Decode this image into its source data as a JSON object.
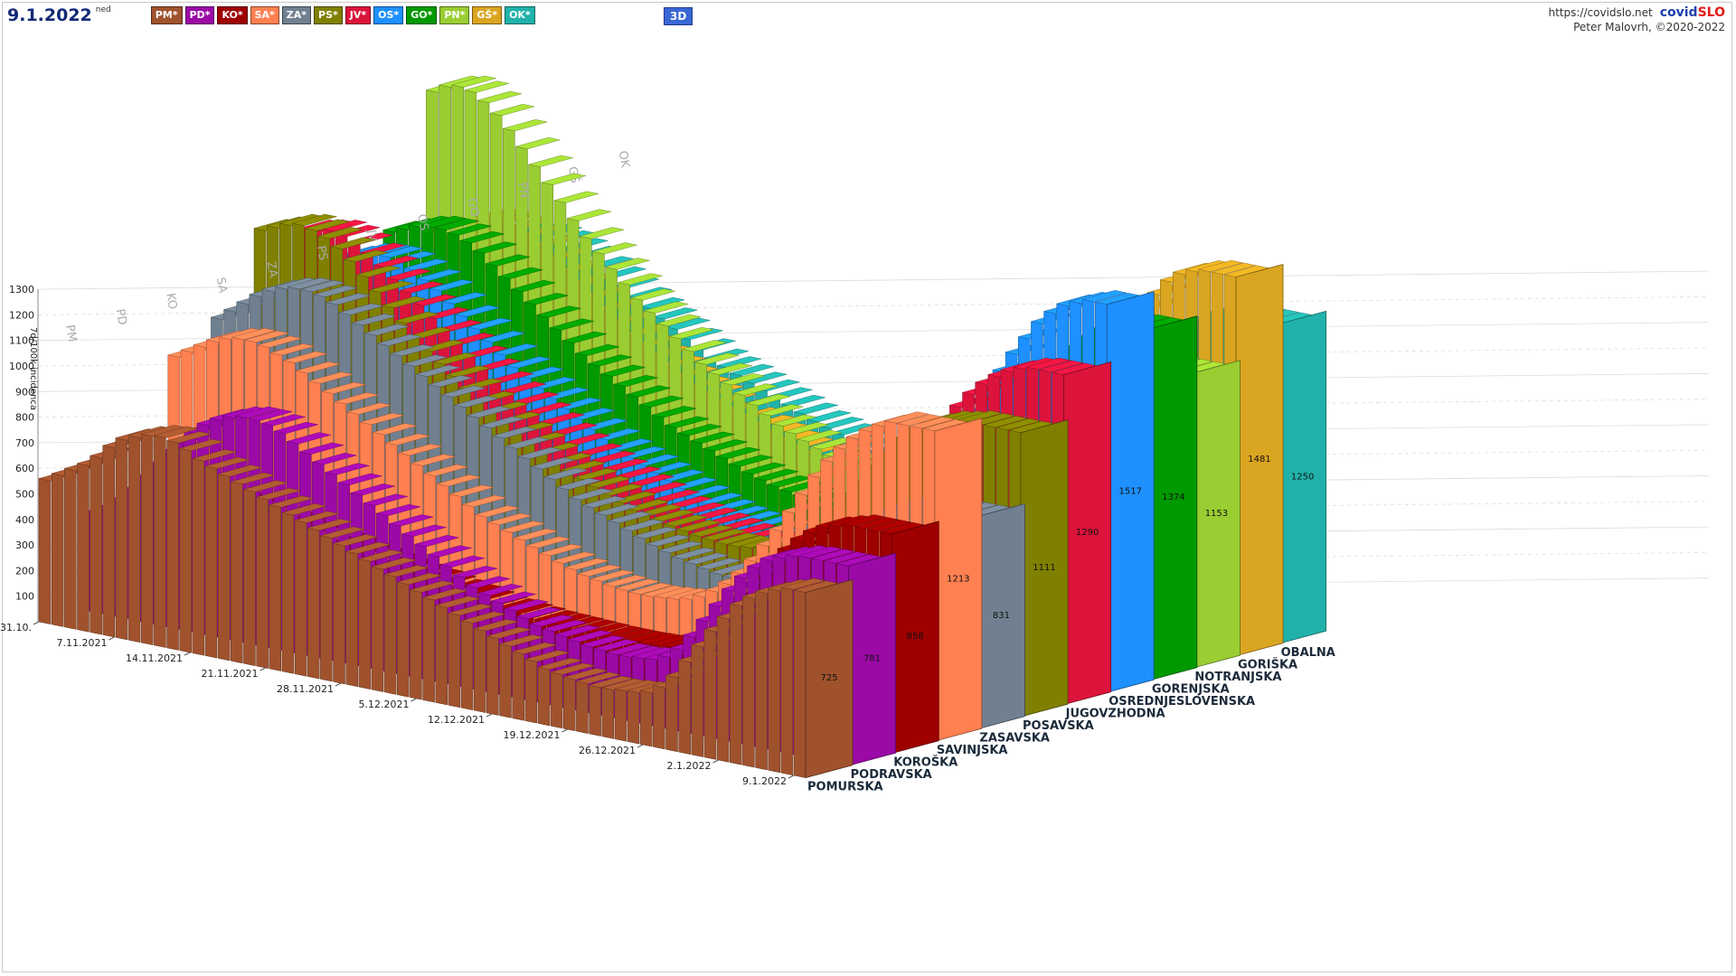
{
  "header": {
    "date": "9.1.2022",
    "weekday": "ned",
    "view_button": "3D",
    "site": "https://covidslo.net",
    "brand_part1": "covid",
    "brand_part2": "SLO",
    "author": "Peter Malovrh, ©2020-2022"
  },
  "region_tags": [
    {
      "label": "PM*",
      "color": "#a0522d"
    },
    {
      "label": "PD*",
      "color": "#9b0aa6"
    },
    {
      "label": "KO*",
      "color": "#9e0000"
    },
    {
      "label": "SA*",
      "color": "#ff8050"
    },
    {
      "label": "ZA*",
      "color": "#708090"
    },
    {
      "label": "PS*",
      "color": "#808000"
    },
    {
      "label": "JV*",
      "color": "#dc143c"
    },
    {
      "label": "OS*",
      "color": "#1e90ff"
    },
    {
      "label": "GO*",
      "color": "#009a00"
    },
    {
      "label": "PN*",
      "color": "#9acd32"
    },
    {
      "label": "GŠ*",
      "color": "#daa520"
    },
    {
      "label": "OK*",
      "color": "#20b2aa"
    }
  ],
  "chart_data": {
    "type": "bar",
    "variant": "3d-stacked-rows",
    "title": "",
    "ylabel": "7d/100k incidenca",
    "ylim": [
      0,
      1300
    ],
    "yticks": [
      100,
      200,
      300,
      400,
      500,
      600,
      700,
      800,
      900,
      1000,
      1100,
      1200,
      1300
    ],
    "date_ticks": [
      "31.10.",
      "7.11.2021",
      "14.11.2021",
      "21.11.2021",
      "28.11.2021",
      "5.12.2021",
      "12.12.2021",
      "19.12.2021",
      "26.12.2021",
      "2.1.2022",
      "9.1.2022"
    ],
    "grid": true,
    "series": [
      {
        "name": "POMURSKA",
        "code": "PM",
        "color": "#a0522d",
        "latest": 725,
        "trend": [
          560,
          590,
          620,
          650,
          690,
          740,
          780,
          800,
          815,
          820,
          810,
          790,
          760,
          740,
          720,
          700,
          680,
          660,
          640,
          620,
          600,
          580,
          560,
          540,
          520,
          500,
          480,
          460,
          440,
          420,
          400,
          380,
          360,
          340,
          320,
          300,
          280,
          260,
          240,
          220,
          210,
          200,
          195,
          190,
          190,
          195,
          200,
          210,
          240,
          290,
          360,
          430,
          500,
          560,
          620,
          660,
          690,
          710,
          725,
          725
        ]
      },
      {
        "name": "PODRAVSKA",
        "code": "PD",
        "color": "#9b0aa6",
        "latest": 781,
        "trend": [
          380,
          410,
          450,
          500,
          560,
          620,
          680,
          730,
          780,
          820,
          850,
          870,
          880,
          880,
          870,
          850,
          820,
          790,
          760,
          730,
          700,
          670,
          640,
          610,
          580,
          550,
          520,
          490,
          460,
          430,
          400,
          380,
          360,
          340,
          320,
          300,
          290,
          280,
          270,
          260,
          255,
          250,
          250,
          255,
          260,
          280,
          320,
          380,
          450,
          520,
          590,
          650,
          700,
          740,
          760,
          775,
          781,
          781,
          781,
          781
        ]
      },
      {
        "name": "KOROŠKA",
        "code": "KO",
        "color": "#9e0000",
        "latest": 858,
        "trend": [
          300,
          330,
          360,
          390,
          420,
          440,
          450,
          460,
          455,
          450,
          440,
          430,
          420,
          410,
          400,
          390,
          380,
          370,
          360,
          350,
          340,
          330,
          320,
          310,
          300,
          290,
          280,
          270,
          260,
          255,
          250,
          245,
          240,
          238,
          236,
          234,
          232,
          230,
          230,
          230,
          232,
          235,
          240,
          250,
          270,
          300,
          350,
          420,
          500,
          580,
          650,
          710,
          760,
          800,
          830,
          845,
          858,
          858,
          858,
          858
        ]
      },
      {
        "name": "SAVINJSKA",
        "code": "SA",
        "color": "#ff8050",
        "latest": 1213,
        "trend": [
          900,
          930,
          960,
          990,
          1010,
          1020,
          1020,
          1010,
          990,
          970,
          940,
          910,
          880,
          850,
          820,
          790,
          760,
          730,
          700,
          670,
          640,
          610,
          580,
          550,
          520,
          500,
          480,
          460,
          440,
          420,
          400,
          385,
          370,
          360,
          350,
          345,
          340,
          340,
          345,
          350,
          360,
          380,
          410,
          450,
          500,
          560,
          630,
          700,
          780,
          860,
          940,
          1010,
          1070,
          1120,
          1160,
          1190,
          1213,
          1213,
          1213,
          1213
        ]
      },
      {
        "name": "ZASAVSKA",
        "code": "ZA",
        "color": "#708090",
        "latest": 831,
        "trend": [
          1000,
          1040,
          1080,
          1120,
          1150,
          1170,
          1180,
          1180,
          1170,
          1150,
          1120,
          1090,
          1060,
          1030,
          1000,
          970,
          940,
          910,
          880,
          850,
          820,
          790,
          760,
          730,
          700,
          670,
          640,
          610,
          580,
          560,
          540,
          520,
          500,
          480,
          460,
          445,
          430,
          420,
          410,
          400,
          395,
          390,
          390,
          395,
          400,
          420,
          450,
          490,
          540,
          600,
          660,
          720,
          770,
          800,
          820,
          831,
          831,
          831,
          831,
          831
        ]
      },
      {
        "name": "POSAVSKA",
        "code": "PS",
        "color": "#808000",
        "latest": 1111,
        "trend": [
          1300,
          1320,
          1340,
          1350,
          1340,
          1320,
          1290,
          1250,
          1200,
          1150,
          1100,
          1050,
          1000,
          960,
          920,
          880,
          840,
          800,
          770,
          740,
          710,
          680,
          650,
          620,
          600,
          580,
          560,
          540,
          520,
          500,
          490,
          480,
          470,
          460,
          450,
          445,
          440,
          440,
          445,
          450,
          460,
          480,
          510,
          550,
          600,
          660,
          720,
          790,
          860,
          930,
          990,
          1040,
          1070,
          1090,
          1100,
          1111,
          1111,
          1111,
          1111,
          1111
        ]
      },
      {
        "name": "JUGOVZHODNA",
        "code": "JV",
        "color": "#dc143c",
        "latest": 1290,
        "trend": [
          1250,
          1260,
          1270,
          1260,
          1240,
          1210,
          1170,
          1130,
          1090,
          1050,
          1010,
          970,
          930,
          890,
          850,
          810,
          780,
          750,
          720,
          690,
          660,
          630,
          600,
          580,
          560,
          540,
          520,
          500,
          480,
          465,
          450,
          440,
          430,
          420,
          410,
          405,
          400,
          400,
          405,
          410,
          420,
          440,
          470,
          510,
          560,
          620,
          690,
          770,
          850,
          930,
          1010,
          1080,
          1140,
          1190,
          1230,
          1260,
          1280,
          1290,
          1290,
          1290
        ]
      },
      {
        "name": "OSREDNJESLOVENSKA",
        "code": "OS",
        "color": "#1e90ff",
        "latest": 1517,
        "trend": [
          1100,
          1120,
          1130,
          1130,
          1120,
          1100,
          1070,
          1040,
          1000,
          960,
          920,
          880,
          840,
          800,
          770,
          740,
          710,
          680,
          650,
          620,
          590,
          560,
          540,
          520,
          500,
          480,
          460,
          440,
          420,
          405,
          390,
          380,
          370,
          360,
          355,
          350,
          350,
          355,
          360,
          370,
          390,
          420,
          460,
          510,
          570,
          640,
          720,
          810,
          900,
          990,
          1080,
          1170,
          1250,
          1320,
          1390,
          1440,
          1480,
          1500,
          1517,
          1517
        ]
      },
      {
        "name": "GORENJSKA",
        "code": "GO",
        "color": "#009a00",
        "latest": 1374,
        "trend": [
          1150,
          1170,
          1190,
          1200,
          1200,
          1190,
          1170,
          1140,
          1100,
          1060,
          1020,
          980,
          940,
          900,
          860,
          820,
          790,
          760,
          730,
          700,
          670,
          640,
          610,
          590,
          570,
          550,
          530,
          510,
          490,
          475,
          460,
          450,
          440,
          430,
          420,
          415,
          410,
          410,
          415,
          420,
          430,
          450,
          480,
          520,
          570,
          630,
          700,
          780,
          860,
          940,
          1020,
          1100,
          1170,
          1230,
          1280,
          1320,
          1350,
          1370,
          1374,
          1374
        ]
      },
      {
        "name": "NOTRANJSKA",
        "code": "PN",
        "color": "#9acd32",
        "latest": 1153,
        "trend": [
          1650,
          1680,
          1690,
          1680,
          1650,
          1610,
          1560,
          1500,
          1440,
          1380,
          1320,
          1260,
          1200,
          1150,
          1100,
          1050,
          1000,
          960,
          920,
          880,
          840,
          800,
          770,
          740,
          710,
          680,
          650,
          620,
          600,
          580,
          560,
          540,
          520,
          505,
          490,
          480,
          470,
          465,
          460,
          460,
          465,
          475,
          490,
          520,
          560,
          610,
          670,
          740,
          810,
          880,
          950,
          1010,
          1060,
          1100,
          1130,
          1145,
          1153,
          1153,
          1153,
          1153
        ]
      },
      {
        "name": "GORIŠKA",
        "code": "GŠ",
        "color": "#daa520",
        "latest": 1481,
        "trend": [
          1100,
          1110,
          1110,
          1100,
          1080,
          1050,
          1010,
          970,
          930,
          890,
          850,
          810,
          770,
          740,
          710,
          680,
          650,
          620,
          600,
          580,
          560,
          540,
          520,
          500,
          480,
          465,
          450,
          440,
          430,
          420,
          410,
          400,
          395,
          390,
          385,
          380,
          380,
          385,
          390,
          400,
          420,
          450,
          490,
          540,
          600,
          670,
          750,
          840,
          930,
          1020,
          1110,
          1200,
          1280,
          1350,
          1410,
          1450,
          1470,
          1481,
          1481,
          1481
        ]
      },
      {
        "name": "OBALNA",
        "code": "OK",
        "color": "#20b2aa",
        "latest": 1250,
        "trend": [
          1000,
          1010,
          1010,
          1000,
          980,
          960,
          930,
          900,
          870,
          840,
          810,
          780,
          750,
          720,
          690,
          660,
          640,
          620,
          600,
          580,
          560,
          540,
          520,
          500,
          485,
          470,
          455,
          440,
          430,
          420,
          410,
          400,
          395,
          390,
          385,
          380,
          380,
          385,
          390,
          400,
          420,
          450,
          490,
          540,
          600,
          670,
          740,
          820,
          900,
          980,
          1050,
          1110,
          1160,
          1200,
          1230,
          1245,
          1250,
          1250,
          1250,
          1250
        ]
      }
    ]
  }
}
